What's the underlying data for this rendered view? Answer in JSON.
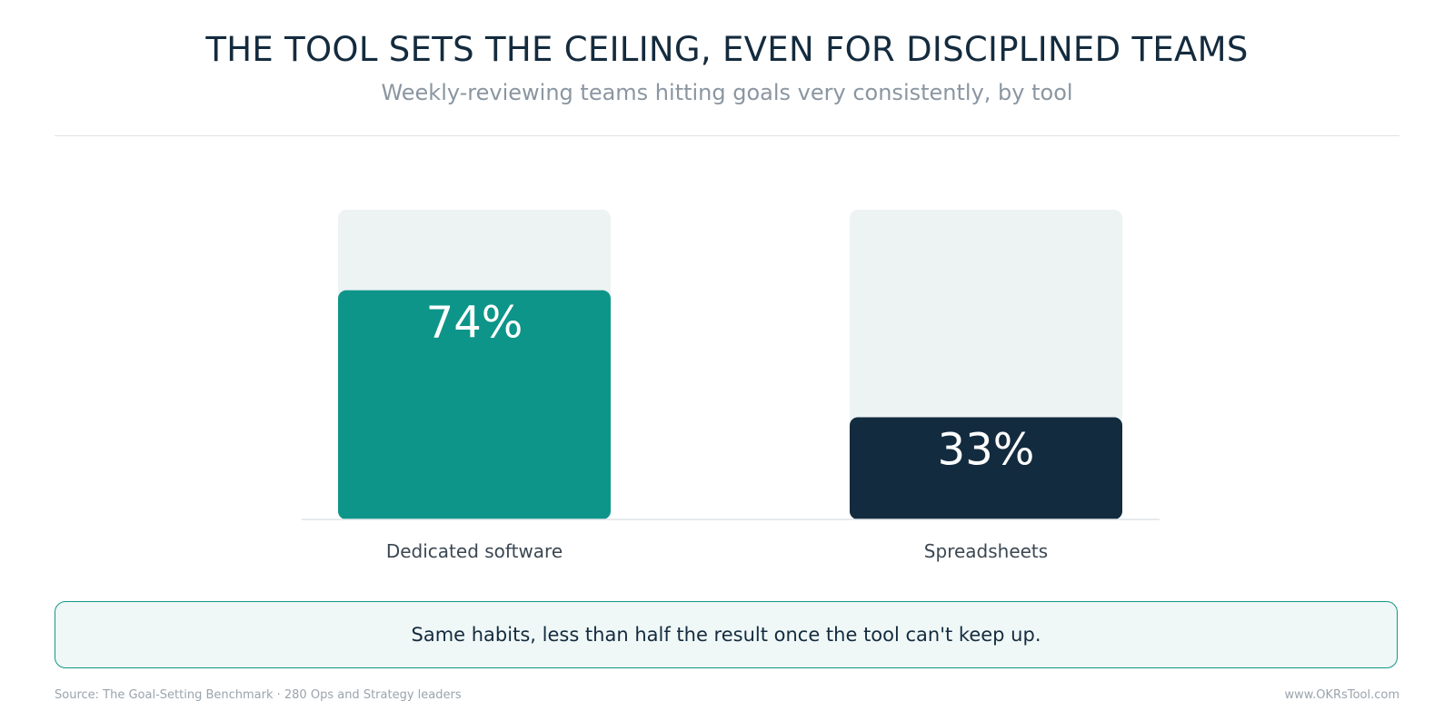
{
  "header": {
    "title": "THE TOOL SETS THE CEILING, EVEN FOR DISCIPLINED TEAMS",
    "subtitle": "Weekly-reviewing teams hitting goals very consistently, by tool"
  },
  "chart_data": {
    "type": "bar",
    "title": "THE TOOL SETS THE CEILING, EVEN FOR DISCIPLINED TEAMS",
    "subtitle": "Weekly-reviewing teams hitting goals very consistently, by tool",
    "categories": [
      "Dedicated software",
      "Spreadsheets"
    ],
    "values": [
      74,
      33
    ],
    "value_labels": [
      "74%",
      "33%"
    ],
    "unit": "%",
    "ylim": [
      0,
      100
    ],
    "grid": false,
    "legend": "none",
    "colors": [
      "#0e958a",
      "#132b3f"
    ],
    "track_color": "#edf3f3"
  },
  "callout": {
    "text": "Same habits, less than half the result once the tool can't keep up."
  },
  "footer": {
    "source": "Source: The Goal-Setting Benchmark · 280 Ops and Strategy leaders",
    "site": "www.OKRsTool.com"
  }
}
